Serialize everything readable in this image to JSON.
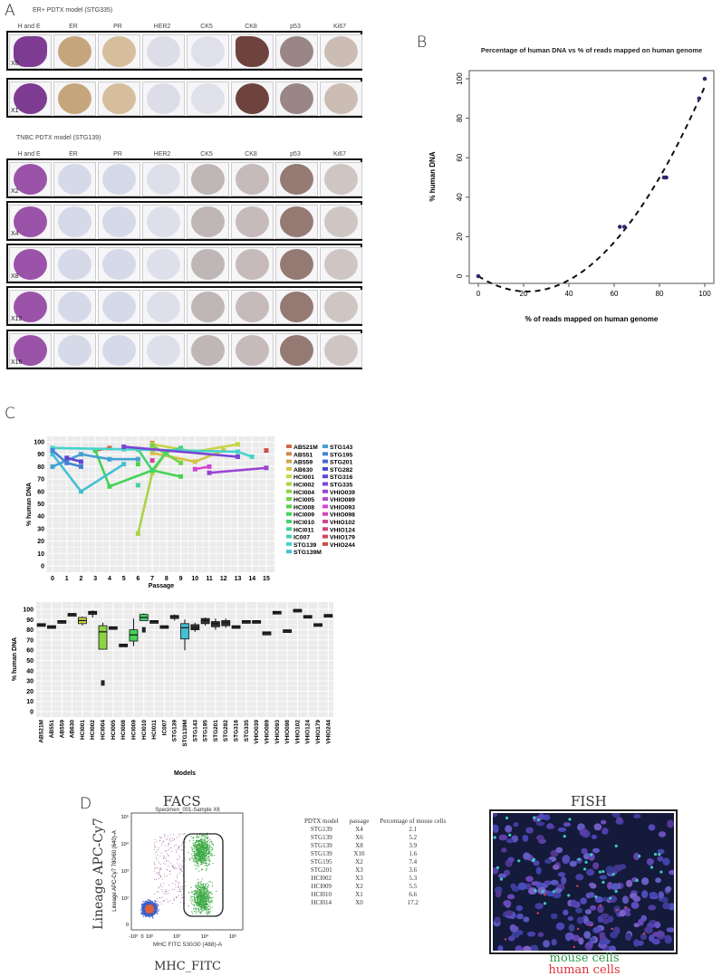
{
  "panel_a": {
    "letter": "A",
    "sections": [
      {
        "title": "ER+ PDTX model (STG335)",
        "headers": [
          "H and E",
          "ER",
          "PR",
          "HER2",
          "CK5",
          "CK8",
          "p53",
          "Ki67"
        ],
        "column_tones": [
          "#7d3b92",
          "#c7a57c",
          "#d6bd9c",
          "#dcdde8",
          "#dfe0ea",
          "#6e423d",
          "#9a8686",
          "#cbbdb4"
        ],
        "rows": [
          {
            "label": "X0"
          },
          {
            "label": "X1"
          }
        ]
      },
      {
        "title": "TNBC PDTX model (STG139)",
        "headers": [
          "H and E",
          "ER",
          "PR",
          "HER2",
          "CK5",
          "CK8",
          "p53",
          "Ki67"
        ],
        "column_tones": [
          "#9a53a8",
          "#d6d9e8",
          "#d6d9e8",
          "#dddfea",
          "#bfb6b6",
          "#c6baba",
          "#957a74",
          "#cfc6c4"
        ],
        "rows": [
          {
            "label": "X2"
          },
          {
            "label": "X4"
          },
          {
            "label": "X8"
          },
          {
            "label": "X12"
          },
          {
            "label": "X16"
          }
        ]
      }
    ]
  },
  "chart_data": [
    {
      "type": "scatter",
      "panel": "B",
      "title": "Percentage of human DNA vs % of reads mapped on human genome",
      "xlabel": "% of reads mapped on human genome",
      "ylabel": "% human DNA",
      "xlim": [
        0,
        100
      ],
      "ylim": [
        0,
        100
      ],
      "xticks": [
        "0",
        "20",
        "40",
        "60",
        "80",
        "100"
      ],
      "yticks": [
        "0",
        "20",
        "40",
        "60",
        "80",
        "100"
      ],
      "points": [
        [
          0,
          0
        ],
        [
          62.5,
          25
        ],
        [
          64.5,
          25
        ],
        [
          82,
          50
        ],
        [
          83,
          50
        ],
        [
          97.5,
          90
        ],
        [
          100,
          100
        ]
      ],
      "fit_line": "dashed",
      "point_color": "#2b2b6e",
      "grid": false
    },
    {
      "type": "line",
      "panel": "C-top",
      "xlabel": "Passage",
      "ylabel": "% human DNA",
      "xlim": [
        0,
        15
      ],
      "ylim": [
        0,
        100
      ],
      "xticks": [
        "0",
        "1",
        "2",
        "3",
        "4",
        "5",
        "6",
        "7",
        "8",
        "9",
        "10",
        "11",
        "12",
        "13",
        "14",
        "15"
      ],
      "yticks": [
        "0",
        "10",
        "20",
        "30",
        "40",
        "50",
        "60",
        "70",
        "80",
        "90",
        "100"
      ],
      "grid": true,
      "legend_position": "right",
      "legend": [
        "AB521M",
        "AB551",
        "AB559",
        "AB630",
        "HCI001",
        "HCI002",
        "HCI004",
        "HCI005",
        "HCI008",
        "HCI009",
        "HCI010",
        "HCI011",
        "IC007",
        "STG139",
        "STG139M",
        "STG143",
        "STG195",
        "STG201",
        "STG282",
        "STG316",
        "STG335",
        "VHIO039",
        "VHIO089",
        "VHIO093",
        "VHIO098",
        "VHIO102",
        "VHIO124",
        "VHIO179",
        "VHIO244"
      ],
      "series": [
        {
          "name": "AB521M",
          "points": [
            [
              3,
              93
            ],
            [
              4,
              95
            ]
          ]
        },
        {
          "name": "AB551",
          "points": [
            [
              7,
              99
            ]
          ]
        },
        {
          "name": "AB630",
          "points": [
            [
              7,
              91
            ],
            [
              10,
              84
            ],
            [
              12,
              93
            ]
          ]
        },
        {
          "name": "HCI001",
          "points": [
            [
              7,
              98
            ],
            [
              10,
              92
            ],
            [
              13,
              98
            ]
          ]
        },
        {
          "name": "HCI002",
          "points": [
            [
              6,
              26
            ],
            [
              7,
              75
            ],
            [
              8,
              92
            ]
          ]
        },
        {
          "name": "HCI005",
          "points": [
            [
              7,
              97
            ],
            [
              9,
              83
            ]
          ]
        },
        {
          "name": "HCI008",
          "points": [
            [
              6,
              82
            ]
          ]
        },
        {
          "name": "HCI009",
          "points": [
            [
              3,
              93
            ],
            [
              4,
              64
            ],
            [
              7,
              77
            ],
            [
              9,
              72
            ]
          ]
        },
        {
          "name": "HCI010",
          "points": [
            [
              6,
              94
            ],
            [
              7,
              77
            ],
            [
              8,
              92
            ],
            [
              9,
              95
            ]
          ]
        },
        {
          "name": "IC007",
          "points": [
            [
              6,
              65
            ]
          ]
        },
        {
          "name": "STG139",
          "points": [
            [
              0,
              95
            ],
            [
              5,
              94
            ],
            [
              9,
              93
            ],
            [
              13,
              92
            ],
            [
              14,
              88
            ]
          ]
        },
        {
          "name": "STG139M",
          "points": [
            [
              0,
              90
            ],
            [
              2,
              60
            ],
            [
              5,
              82
            ]
          ]
        },
        {
          "name": "STG143",
          "points": [
            [
              0,
              80
            ],
            [
              2,
              90
            ],
            [
              4,
              86
            ],
            [
              6,
              86
            ]
          ]
        },
        {
          "name": "STG195",
          "points": [
            [
              0,
              93
            ],
            [
              1,
              83
            ],
            [
              2,
              80
            ]
          ]
        },
        {
          "name": "STG316",
          "points": [
            [
              1,
              87
            ],
            [
              2,
              84
            ]
          ]
        },
        {
          "name": "STG335",
          "points": [
            [
              5,
              96
            ],
            [
              13,
              88
            ]
          ]
        },
        {
          "name": "VHIO039",
          "points": [
            [
              11,
              75
            ],
            [
              15,
              79
            ]
          ]
        },
        {
          "name": "VHIO093",
          "points": [
            [
              10,
              78
            ],
            [
              11,
              80
            ]
          ]
        },
        {
          "name": "VHIO102",
          "points": [
            [
              7,
              85
            ]
          ]
        },
        {
          "name": "VHIO244",
          "points": [
            [
              15,
              93
            ]
          ]
        }
      ]
    },
    {
      "type": "box",
      "panel": "C-bottom",
      "xlabel": "Models",
      "ylabel": "% human DNA",
      "ylim": [
        0,
        100
      ],
      "yticks": [
        "0",
        "10",
        "20",
        "30",
        "40",
        "50",
        "60",
        "70",
        "80",
        "90",
        "100"
      ],
      "grid": true,
      "categories": [
        "AB521M",
        "AB551",
        "AB559",
        "AB630",
        "HCI001",
        "HCI002",
        "HCI004",
        "HCI005",
        "HCI008",
        "HCI009",
        "HCI010",
        "HCI011",
        "IC007",
        "STG139",
        "STG139M",
        "STG143",
        "STG195",
        "STG201",
        "STG282",
        "STG316",
        "STG335",
        "VHIO039",
        "VHIO089",
        "VHIO093",
        "VHIO098",
        "VHIO102",
        "VHIO124",
        "VHIO179",
        "VHIO244"
      ],
      "boxes": [
        {
          "median": 85,
          "q1": 84,
          "q3": 86
        },
        {
          "median": 83,
          "q1": 82,
          "q3": 84
        },
        {
          "median": 88,
          "q1": 87,
          "q3": 89
        },
        {
          "median": 95,
          "q1": 94,
          "q3": 96
        },
        {
          "median": 89,
          "q1": 86,
          "q3": 92,
          "min": 84,
          "max": 93
        },
        {
          "median": 97,
          "q1": 95,
          "q3": 98,
          "min": 92,
          "max": 99
        },
        {
          "median": 78,
          "q1": 61,
          "q3": 84,
          "min": 61,
          "max": 87,
          "outliers": [
            28
          ]
        },
        {
          "median": 82,
          "q1": 81,
          "q3": 83
        },
        {
          "median": 65,
          "q1": 64,
          "q3": 66
        },
        {
          "median": 75,
          "q1": 69,
          "q3": 80,
          "min": 64,
          "max": 91
        },
        {
          "median": 92,
          "q1": 89,
          "q3": 95,
          "max": 96,
          "outliers": [
            80
          ]
        },
        {
          "median": 88,
          "q1": 87,
          "q3": 89
        },
        {
          "median": 83,
          "q1": 82,
          "q3": 84
        },
        {
          "median": 93,
          "q1": 91,
          "q3": 94,
          "min": 89,
          "max": 95
        },
        {
          "median": 82,
          "q1": 71,
          "q3": 86,
          "min": 60,
          "max": 90
        },
        {
          "median": 82,
          "q1": 80,
          "q3": 85,
          "min": 78,
          "max": 87
        },
        {
          "median": 89,
          "q1": 86,
          "q3": 91,
          "min": 84,
          "max": 92
        },
        {
          "median": 86,
          "q1": 83,
          "q3": 88,
          "min": 80,
          "max": 91
        },
        {
          "median": 87,
          "q1": 84,
          "q3": 89,
          "min": 82,
          "max": 91
        },
        {
          "median": 83,
          "q1": 82,
          "q3": 84
        },
        {
          "median": 88,
          "q1": 87,
          "q3": 89
        },
        {
          "median": 88,
          "q1": 87,
          "q3": 89
        },
        {
          "median": 77,
          "q1": 75,
          "q3": 78
        },
        {
          "median": 97,
          "q1": 96,
          "q3": 98
        },
        {
          "median": 79,
          "q1": 78,
          "q3": 80
        },
        {
          "median": 99,
          "q1": 98,
          "q3": 100
        },
        {
          "median": 93,
          "q1": 92,
          "q3": 94
        },
        {
          "median": 85,
          "q1": 84,
          "q3": 86
        },
        {
          "median": 94,
          "q1": 93,
          "q3": 95
        }
      ]
    }
  ],
  "panel_b": {
    "letter": "B"
  },
  "panel_c": {
    "letter": "C"
  },
  "panel_d": {
    "letter": "D",
    "facs": {
      "title": "FACS",
      "plot_title": "Specimen_001-Sample X6",
      "y_axis_outer": "Lineage APC-Cy7",
      "y_axis_inner": "Lineage APC-Cy7 780/60 (640)-A",
      "x_axis_inner": "MHC FITC 530/30 (488)-A",
      "x_axis_outer": "MHC_FITC",
      "xticks": [
        "-10³",
        "0",
        "10²",
        "10³",
        "10⁴",
        "10⁵"
      ],
      "yticks": [
        "0",
        "10²",
        "10³",
        "10⁴",
        "10⁵"
      ]
    },
    "table": {
      "headers": [
        "PDTX model",
        "passage",
        "Percentage of mouse cells"
      ],
      "rows": [
        [
          "STG139",
          "X4",
          "2.1"
        ],
        [
          "STG139",
          "X6",
          "5.2"
        ],
        [
          "STG139",
          "X8",
          "3.9"
        ],
        [
          "STG139",
          "X10",
          "1.6"
        ],
        [
          "STG195",
          "X2",
          "7.4"
        ],
        [
          "STG201",
          "X3",
          "3.6"
        ],
        [
          "HCI002",
          "X3",
          "5.3"
        ],
        [
          "HCI009",
          "X2",
          "5.5"
        ],
        [
          "HCI010",
          "X1",
          "6.6"
        ],
        [
          "HCI014",
          "X0",
          "17.2"
        ]
      ]
    },
    "fish": {
      "title": "FISH",
      "legend_mouse": "mouse cells",
      "legend_human": "human cells",
      "mouse_color": "#2e9a4a",
      "human_color": "#e0303a"
    }
  }
}
